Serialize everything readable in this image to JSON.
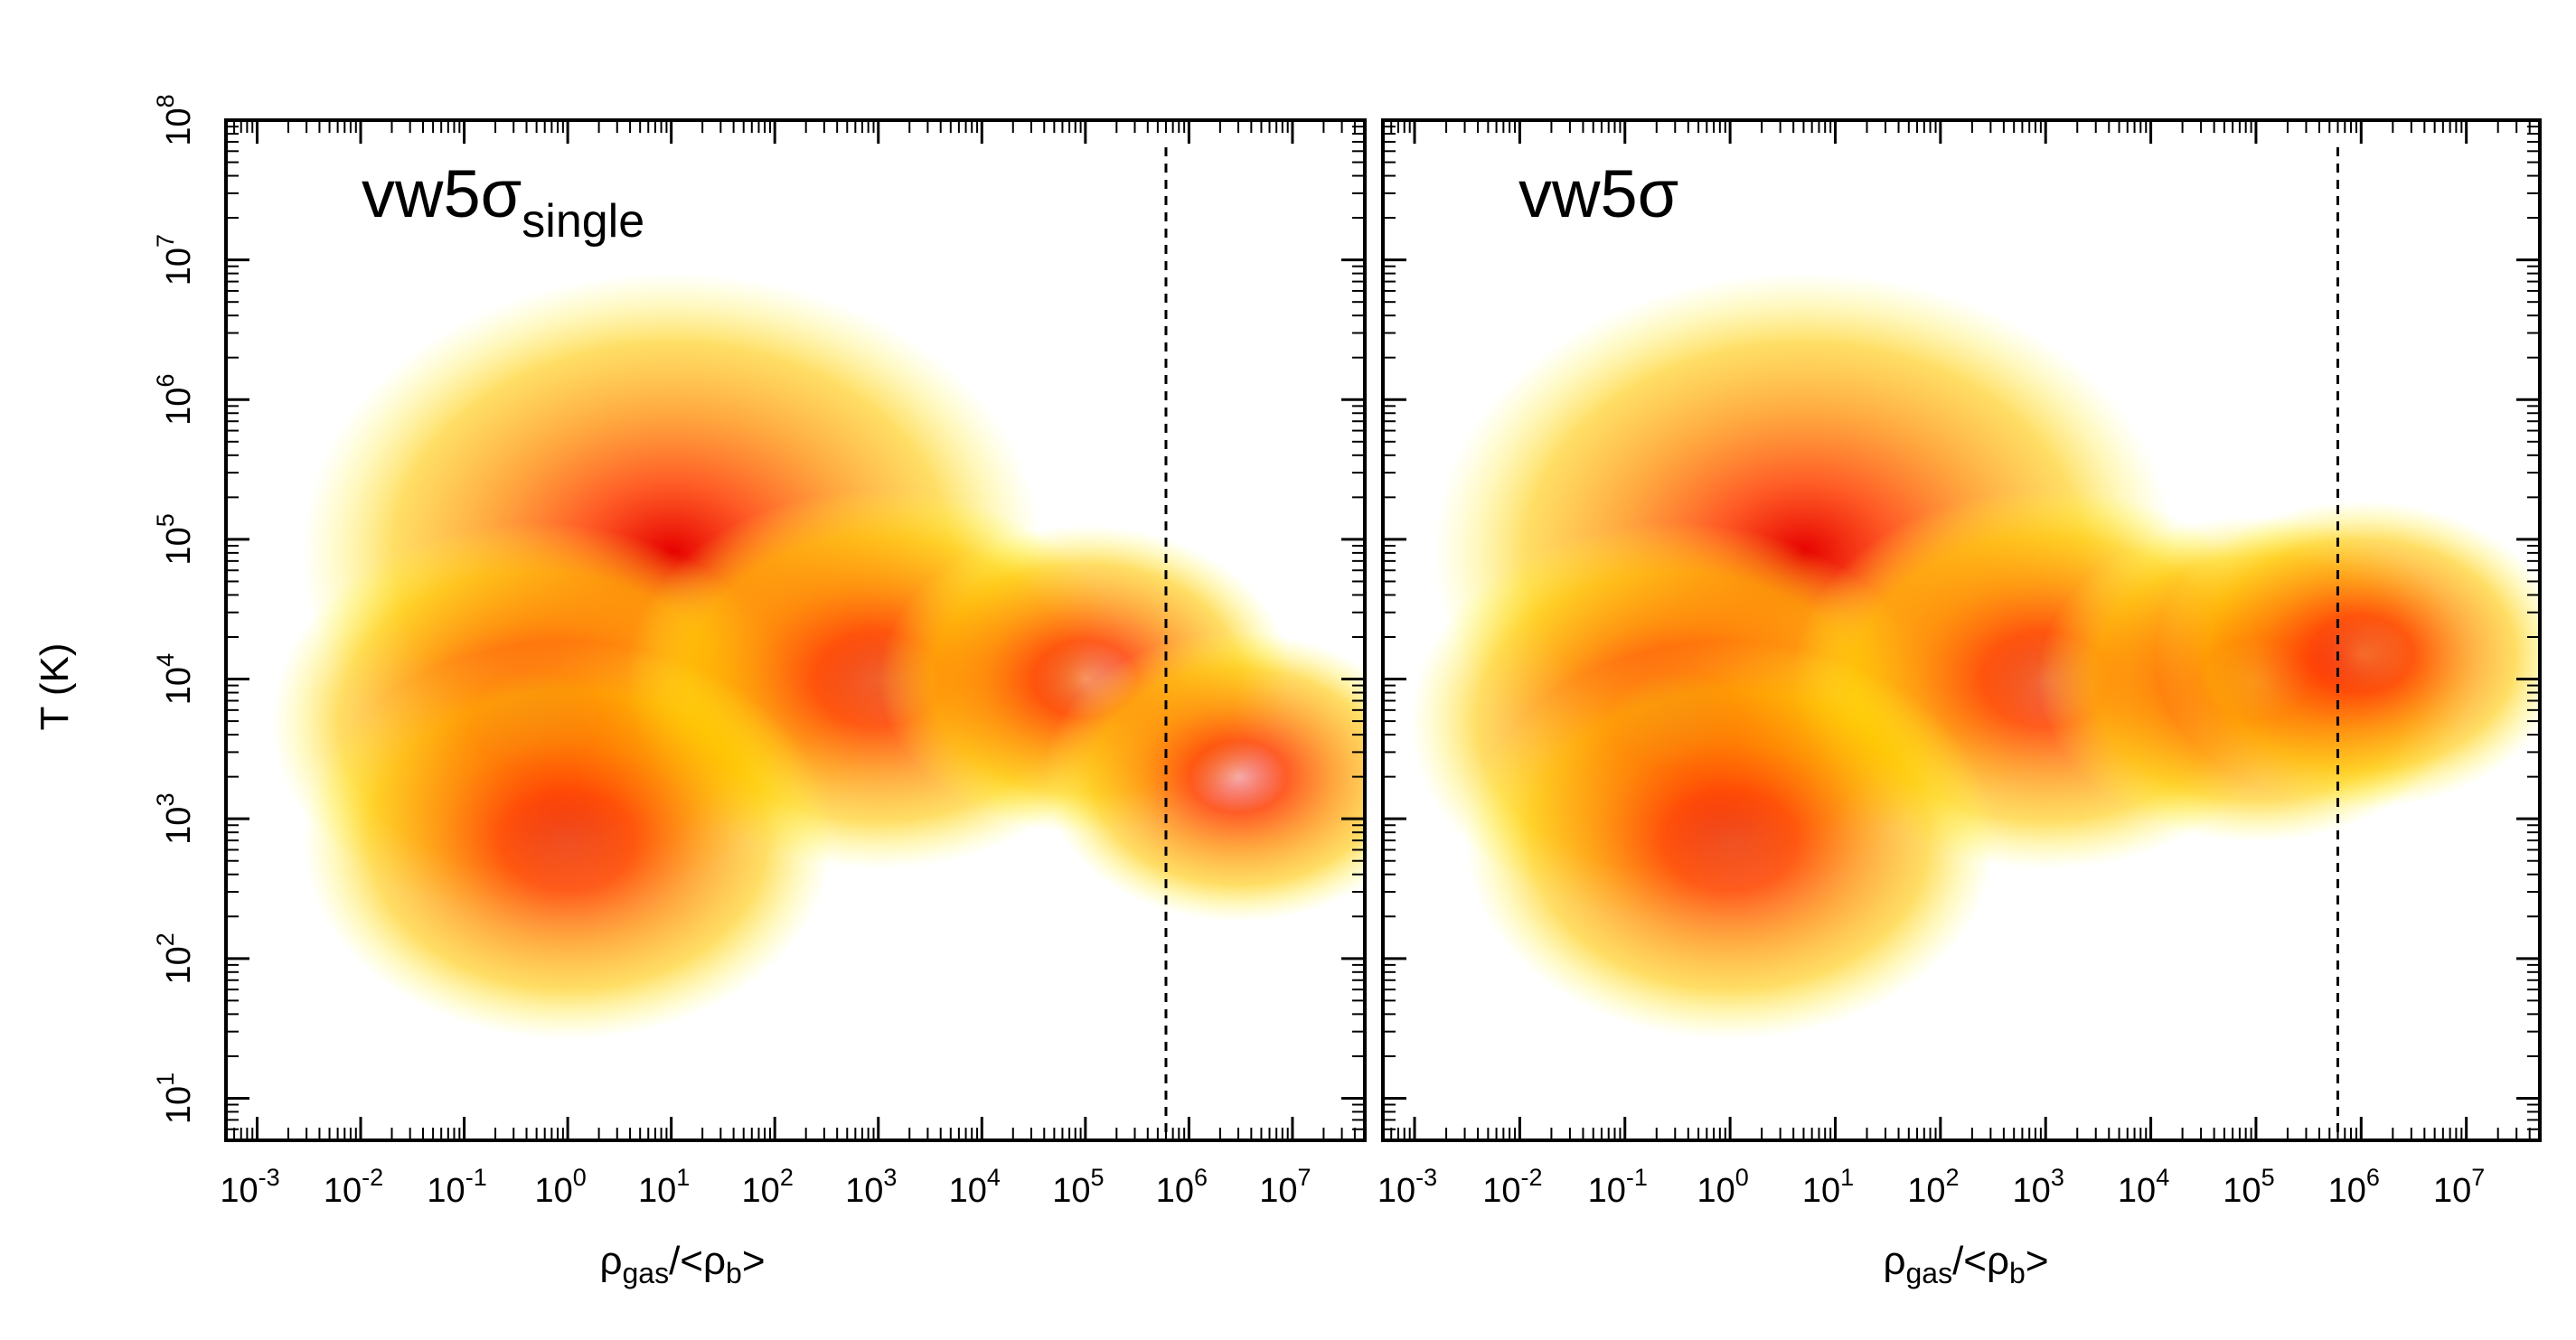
{
  "chart_data": [
    {
      "type": "heatmap",
      "panel_label": "vw5σ",
      "panel_label_sub": "single",
      "xlabel": {
        "base": "ρ",
        "sub1": "gas",
        "mid": "/<ρ",
        "sub2": "b",
        "end": ">"
      },
      "ylabel": "T (K)",
      "x_scale": "log",
      "y_scale": "log",
      "xlim": [
        0.0005,
        50000000
      ],
      "ylim": [
        5,
        100000000
      ],
      "x_tick_labels": [
        "10",
        "10",
        "10",
        "10",
        "10",
        "10",
        "10",
        "10",
        "10",
        "10",
        "10"
      ],
      "x_tick_exponents": [
        "-3",
        "-2",
        "-1",
        "0",
        "1",
        "2",
        "3",
        "4",
        "5",
        "6",
        "7"
      ],
      "y_tick_labels": [
        "10",
        "10",
        "10",
        "10",
        "10",
        "10",
        "10",
        "10"
      ],
      "y_tick_exponents": [
        "1",
        "2",
        "3",
        "4",
        "5",
        "6",
        "7",
        "8"
      ],
      "vertical_reference_line": {
        "x": 600000,
        "style": "dashed"
      },
      "colormap": [
        "#ffff33",
        "#ffc800",
        "#ff8c00",
        "#ff4000",
        "#e60000"
      ],
      "density_components": [
        {
          "x": 10,
          "y": 80000,
          "w": 1.0
        },
        {
          "x": 0.5,
          "y": 5000,
          "w": 0.55
        },
        {
          "x": 1000,
          "y": 10000,
          "w": 0.5
        },
        {
          "x": 100000,
          "y": 10000,
          "w": 0.3
        },
        {
          "x": 3000000,
          "y": 2000,
          "w": 0.25
        },
        {
          "x": 1,
          "y": 700,
          "w": 0.55
        }
      ]
    },
    {
      "type": "heatmap",
      "panel_label": "vw5σ",
      "panel_label_sub": "",
      "xlabel": {
        "base": "ρ",
        "sub1": "gas",
        "mid": "/<ρ",
        "sub2": "b",
        "end": ">"
      },
      "ylabel": "",
      "x_scale": "log",
      "y_scale": "log",
      "xlim": [
        0.0005,
        50000000
      ],
      "ylim": [
        5,
        100000000
      ],
      "x_tick_labels": [
        "10",
        "10",
        "10",
        "10",
        "10",
        "10",
        "10",
        "10",
        "10",
        "10",
        "10"
      ],
      "x_tick_exponents": [
        "-3",
        "-2",
        "-1",
        "0",
        "1",
        "2",
        "3",
        "4",
        "5",
        "6",
        "7"
      ],
      "vertical_reference_line": {
        "x": 600000,
        "style": "dashed"
      },
      "colormap": [
        "#ffff33",
        "#ffc800",
        "#ff8c00",
        "#ff4000",
        "#e60000"
      ],
      "density_components": [
        {
          "x": 5,
          "y": 80000,
          "w": 1.0
        },
        {
          "x": 0.3,
          "y": 5000,
          "w": 0.55
        },
        {
          "x": 1000,
          "y": 10000,
          "w": 0.5
        },
        {
          "x": 100000,
          "y": 10000,
          "w": 0.35
        },
        {
          "x": 1000000,
          "y": 15000,
          "w": 0.3
        },
        {
          "x": 1,
          "y": 700,
          "w": 0.55
        }
      ]
    }
  ]
}
